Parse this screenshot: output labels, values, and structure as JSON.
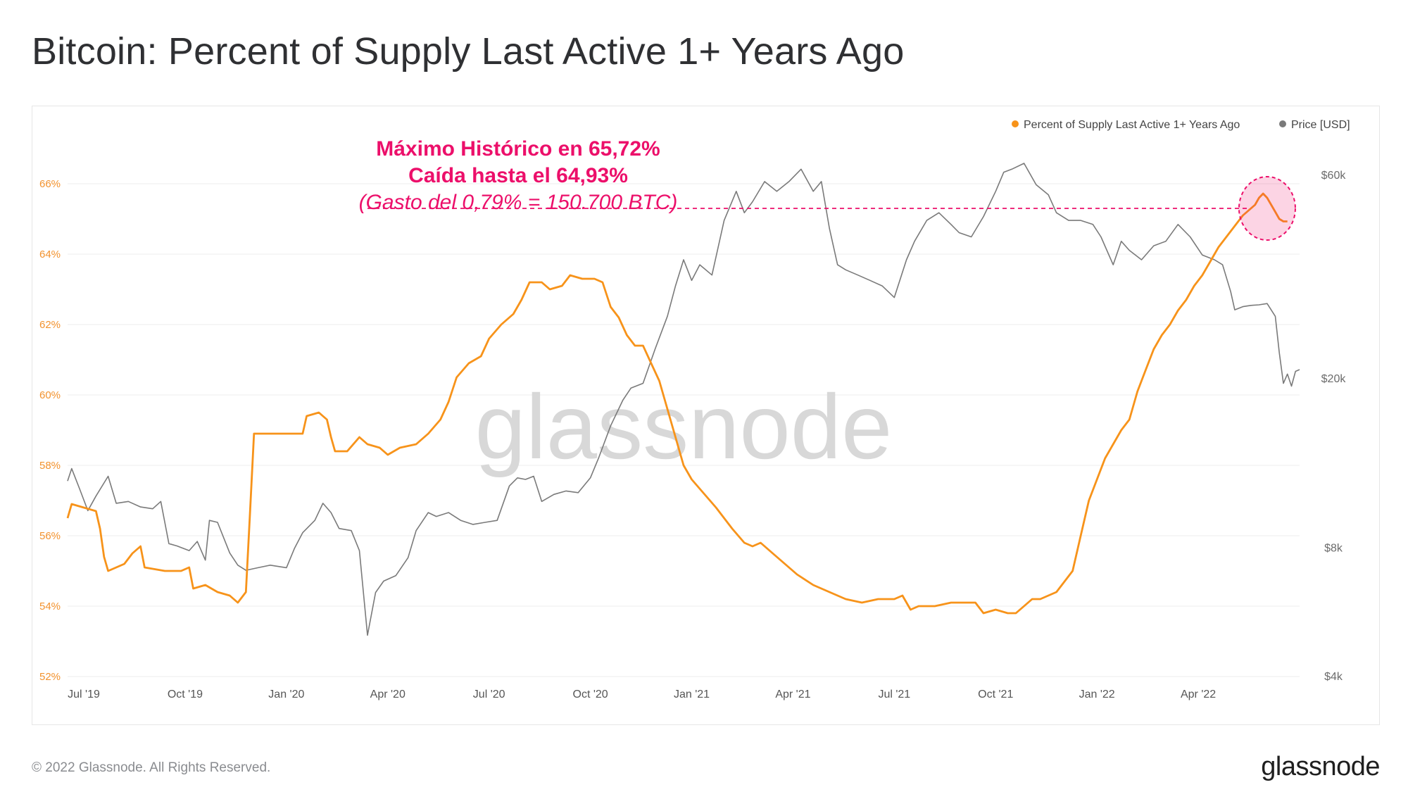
{
  "title": "Bitcoin: Percent of Supply Last Active 1+ Years Ago",
  "footer": {
    "copyright": "© 2022 Glassnode. All Rights Reserved.",
    "logo": "glassnode"
  },
  "chart_data": {
    "type": "line",
    "title": "Bitcoin: Percent of Supply Last Active 1+ Years Ago",
    "watermark": "glassnode",
    "legend": {
      "position": "top-right",
      "entries": [
        {
          "name": "Percent of Supply Last Active 1+ Years Ago",
          "color": "#f7931a"
        },
        {
          "name": "Price [USD]",
          "color": "#7a7a7a"
        }
      ]
    },
    "x_axis": {
      "range": [
        2019.46,
        2022.5
      ],
      "ticks": [
        {
          "label": "Jul '19",
          "t": 2019.5
        },
        {
          "label": "Oct '19",
          "t": 2019.75
        },
        {
          "label": "Jan '20",
          "t": 2020.0
        },
        {
          "label": "Apr '20",
          "t": 2020.25
        },
        {
          "label": "Jul '20",
          "t": 2020.5
        },
        {
          "label": "Oct '20",
          "t": 2020.75
        },
        {
          "label": "Jan '21",
          "t": 2021.0
        },
        {
          "label": "Apr '21",
          "t": 2021.25
        },
        {
          "label": "Jul '21",
          "t": 2021.5
        },
        {
          "label": "Oct '21",
          "t": 2021.75
        },
        {
          "label": "Jan '22",
          "t": 2022.0
        },
        {
          "label": "Apr '22",
          "t": 2022.25
        }
      ]
    },
    "y_left": {
      "unit": "%",
      "range": [
        52,
        67.2
      ],
      "ticks": [
        {
          "label": "52%",
          "v": 52
        },
        {
          "label": "54%",
          "v": 54
        },
        {
          "label": "56%",
          "v": 56
        },
        {
          "label": "58%",
          "v": 58
        },
        {
          "label": "60%",
          "v": 60
        },
        {
          "label": "62%",
          "v": 62
        },
        {
          "label": "64%",
          "v": 64
        },
        {
          "label": "66%",
          "v": 66
        }
      ]
    },
    "y_right": {
      "scale": "log",
      "range": [
        4000,
        72000
      ],
      "ticks": [
        {
          "label": "$4k",
          "v": 4000
        },
        {
          "label": "$8k",
          "v": 8000
        },
        {
          "label": "$20k",
          "v": 20000
        },
        {
          "label": "$60k",
          "v": 60000
        }
      ]
    },
    "series": [
      {
        "name": "Percent of Supply Last Active 1+ Years Ago",
        "axis": "left",
        "color": "#f7931a",
        "points": [
          [
            2019.46,
            56.5
          ],
          [
            2019.47,
            56.9
          ],
          [
            2019.5,
            56.8
          ],
          [
            2019.53,
            56.7
          ],
          [
            2019.54,
            56.2
          ],
          [
            2019.55,
            55.4
          ],
          [
            2019.56,
            55.0
          ],
          [
            2019.6,
            55.2
          ],
          [
            2019.62,
            55.5
          ],
          [
            2019.64,
            55.7
          ],
          [
            2019.65,
            55.1
          ],
          [
            2019.7,
            55.0
          ],
          [
            2019.74,
            55.0
          ],
          [
            2019.76,
            55.1
          ],
          [
            2019.77,
            54.5
          ],
          [
            2019.8,
            54.6
          ],
          [
            2019.83,
            54.4
          ],
          [
            2019.86,
            54.3
          ],
          [
            2019.88,
            54.1
          ],
          [
            2019.9,
            54.4
          ],
          [
            2019.91,
            56.6
          ],
          [
            2019.92,
            58.9
          ],
          [
            2019.95,
            58.9
          ],
          [
            2020.0,
            58.9
          ],
          [
            2020.04,
            58.9
          ],
          [
            2020.05,
            59.4
          ],
          [
            2020.08,
            59.5
          ],
          [
            2020.1,
            59.3
          ],
          [
            2020.11,
            58.8
          ],
          [
            2020.12,
            58.4
          ],
          [
            2020.15,
            58.4
          ],
          [
            2020.18,
            58.8
          ],
          [
            2020.2,
            58.6
          ],
          [
            2020.23,
            58.5
          ],
          [
            2020.25,
            58.3
          ],
          [
            2020.28,
            58.5
          ],
          [
            2020.32,
            58.6
          ],
          [
            2020.35,
            58.9
          ],
          [
            2020.38,
            59.3
          ],
          [
            2020.4,
            59.8
          ],
          [
            2020.42,
            60.5
          ],
          [
            2020.45,
            60.9
          ],
          [
            2020.48,
            61.1
          ],
          [
            2020.5,
            61.6
          ],
          [
            2020.53,
            62.0
          ],
          [
            2020.56,
            62.3
          ],
          [
            2020.58,
            62.7
          ],
          [
            2020.6,
            63.2
          ],
          [
            2020.63,
            63.2
          ],
          [
            2020.65,
            63.0
          ],
          [
            2020.68,
            63.1
          ],
          [
            2020.7,
            63.4
          ],
          [
            2020.73,
            63.3
          ],
          [
            2020.76,
            63.3
          ],
          [
            2020.78,
            63.2
          ],
          [
            2020.8,
            62.5
          ],
          [
            2020.82,
            62.2
          ],
          [
            2020.84,
            61.7
          ],
          [
            2020.86,
            61.4
          ],
          [
            2020.88,
            61.4
          ],
          [
            2020.9,
            60.9
          ],
          [
            2020.92,
            60.4
          ],
          [
            2020.94,
            59.6
          ],
          [
            2020.96,
            58.8
          ],
          [
            2020.98,
            58.0
          ],
          [
            2021.0,
            57.6
          ],
          [
            2021.03,
            57.2
          ],
          [
            2021.06,
            56.8
          ],
          [
            2021.1,
            56.2
          ],
          [
            2021.13,
            55.8
          ],
          [
            2021.15,
            55.7
          ],
          [
            2021.17,
            55.8
          ],
          [
            2021.2,
            55.5
          ],
          [
            2021.23,
            55.2
          ],
          [
            2021.26,
            54.9
          ],
          [
            2021.3,
            54.6
          ],
          [
            2021.34,
            54.4
          ],
          [
            2021.38,
            54.2
          ],
          [
            2021.42,
            54.1
          ],
          [
            2021.46,
            54.2
          ],
          [
            2021.5,
            54.2
          ],
          [
            2021.52,
            54.3
          ],
          [
            2021.54,
            53.9
          ],
          [
            2021.56,
            54.0
          ],
          [
            2021.6,
            54.0
          ],
          [
            2021.64,
            54.1
          ],
          [
            2021.68,
            54.1
          ],
          [
            2021.7,
            54.1
          ],
          [
            2021.72,
            53.8
          ],
          [
            2021.75,
            53.9
          ],
          [
            2021.78,
            53.8
          ],
          [
            2021.8,
            53.8
          ],
          [
            2021.82,
            54.0
          ],
          [
            2021.84,
            54.2
          ],
          [
            2021.86,
            54.2
          ],
          [
            2021.88,
            54.3
          ],
          [
            2021.9,
            54.4
          ],
          [
            2021.92,
            54.7
          ],
          [
            2021.94,
            55.0
          ],
          [
            2021.96,
            56.0
          ],
          [
            2021.98,
            57.0
          ],
          [
            2022.0,
            57.6
          ],
          [
            2022.02,
            58.2
          ],
          [
            2022.04,
            58.6
          ],
          [
            2022.06,
            59.0
          ],
          [
            2022.08,
            59.3
          ],
          [
            2022.1,
            60.1
          ],
          [
            2022.12,
            60.7
          ],
          [
            2022.14,
            61.3
          ],
          [
            2022.16,
            61.7
          ],
          [
            2022.18,
            62.0
          ],
          [
            2022.2,
            62.4
          ],
          [
            2022.22,
            62.7
          ],
          [
            2022.24,
            63.1
          ],
          [
            2022.26,
            63.4
          ],
          [
            2022.28,
            63.8
          ],
          [
            2022.3,
            64.2
          ],
          [
            2022.32,
            64.5
          ],
          [
            2022.34,
            64.8
          ],
          [
            2022.36,
            65.1
          ],
          [
            2022.37,
            65.2
          ],
          [
            2022.38,
            65.3
          ],
          [
            2022.39,
            65.4
          ],
          [
            2022.4,
            65.6
          ],
          [
            2022.41,
            65.72
          ],
          [
            2022.42,
            65.6
          ],
          [
            2022.43,
            65.4
          ],
          [
            2022.44,
            65.2
          ],
          [
            2022.45,
            65.0
          ],
          [
            2022.46,
            64.93
          ],
          [
            2022.47,
            64.93
          ]
        ]
      },
      {
        "name": "Price [USD]",
        "axis": "right",
        "color": "#7a7a7a",
        "points": [
          [
            2019.46,
            11500
          ],
          [
            2019.47,
            12300
          ],
          [
            2019.49,
            11000
          ],
          [
            2019.51,
            9800
          ],
          [
            2019.53,
            10600
          ],
          [
            2019.56,
            11800
          ],
          [
            2019.58,
            10200
          ],
          [
            2019.61,
            10300
          ],
          [
            2019.64,
            10000
          ],
          [
            2019.67,
            9900
          ],
          [
            2019.69,
            10300
          ],
          [
            2019.71,
            8200
          ],
          [
            2019.73,
            8100
          ],
          [
            2019.76,
            7900
          ],
          [
            2019.78,
            8300
          ],
          [
            2019.8,
            7500
          ],
          [
            2019.81,
            9300
          ],
          [
            2019.83,
            9200
          ],
          [
            2019.86,
            7800
          ],
          [
            2019.88,
            7300
          ],
          [
            2019.9,
            7100
          ],
          [
            2019.93,
            7200
          ],
          [
            2019.96,
            7300
          ],
          [
            2020.0,
            7200
          ],
          [
            2020.02,
            8000
          ],
          [
            2020.04,
            8700
          ],
          [
            2020.07,
            9300
          ],
          [
            2020.09,
            10200
          ],
          [
            2020.11,
            9700
          ],
          [
            2020.13,
            8900
          ],
          [
            2020.16,
            8800
          ],
          [
            2020.18,
            7900
          ],
          [
            2020.2,
            5000
          ],
          [
            2020.22,
            6300
          ],
          [
            2020.24,
            6700
          ],
          [
            2020.27,
            6900
          ],
          [
            2020.3,
            7600
          ],
          [
            2020.32,
            8800
          ],
          [
            2020.35,
            9700
          ],
          [
            2020.37,
            9500
          ],
          [
            2020.4,
            9700
          ],
          [
            2020.43,
            9300
          ],
          [
            2020.46,
            9100
          ],
          [
            2020.49,
            9200
          ],
          [
            2020.52,
            9300
          ],
          [
            2020.55,
            11200
          ],
          [
            2020.57,
            11700
          ],
          [
            2020.59,
            11600
          ],
          [
            2020.61,
            11800
          ],
          [
            2020.63,
            10300
          ],
          [
            2020.66,
            10700
          ],
          [
            2020.69,
            10900
          ],
          [
            2020.72,
            10800
          ],
          [
            2020.75,
            11700
          ],
          [
            2020.77,
            13000
          ],
          [
            2020.8,
            15500
          ],
          [
            2020.83,
            17800
          ],
          [
            2020.85,
            19000
          ],
          [
            2020.88,
            19500
          ],
          [
            2020.91,
            23500
          ],
          [
            2020.94,
            28000
          ],
          [
            2020.96,
            33000
          ],
          [
            2020.98,
            38000
          ],
          [
            2021.0,
            34000
          ],
          [
            2021.02,
            37000
          ],
          [
            2021.05,
            35000
          ],
          [
            2021.08,
            47000
          ],
          [
            2021.11,
            55000
          ],
          [
            2021.13,
            49000
          ],
          [
            2021.15,
            52000
          ],
          [
            2021.18,
            58000
          ],
          [
            2021.21,
            55000
          ],
          [
            2021.24,
            58000
          ],
          [
            2021.27,
            62000
          ],
          [
            2021.3,
            55000
          ],
          [
            2021.32,
            58000
          ],
          [
            2021.34,
            45000
          ],
          [
            2021.36,
            37000
          ],
          [
            2021.38,
            36000
          ],
          [
            2021.41,
            35000
          ],
          [
            2021.44,
            34000
          ],
          [
            2021.47,
            33000
          ],
          [
            2021.5,
            31000
          ],
          [
            2021.53,
            38000
          ],
          [
            2021.55,
            42000
          ],
          [
            2021.58,
            47000
          ],
          [
            2021.61,
            49000
          ],
          [
            2021.64,
            46000
          ],
          [
            2021.66,
            44000
          ],
          [
            2021.69,
            43000
          ],
          [
            2021.72,
            48000
          ],
          [
            2021.75,
            55000
          ],
          [
            2021.77,
            61000
          ],
          [
            2021.79,
            62000
          ],
          [
            2021.82,
            64000
          ],
          [
            2021.85,
            57000
          ],
          [
            2021.88,
            54000
          ],
          [
            2021.9,
            49000
          ],
          [
            2021.93,
            47000
          ],
          [
            2021.96,
            47000
          ],
          [
            2021.99,
            46000
          ],
          [
            2022.01,
            43000
          ],
          [
            2022.04,
            37000
          ],
          [
            2022.06,
            42000
          ],
          [
            2022.08,
            40000
          ],
          [
            2022.11,
            38000
          ],
          [
            2022.14,
            41000
          ],
          [
            2022.17,
            42000
          ],
          [
            2022.2,
            46000
          ],
          [
            2022.23,
            43000
          ],
          [
            2022.26,
            39000
          ],
          [
            2022.29,
            38000
          ],
          [
            2022.31,
            37000
          ],
          [
            2022.33,
            32000
          ],
          [
            2022.34,
            29000
          ],
          [
            2022.36,
            29500
          ],
          [
            2022.38,
            29700
          ],
          [
            2022.4,
            29800
          ],
          [
            2022.42,
            30000
          ],
          [
            2022.44,
            28000
          ],
          [
            2022.45,
            23000
          ],
          [
            2022.46,
            19500
          ],
          [
            2022.47,
            20500
          ],
          [
            2022.48,
            19200
          ],
          [
            2022.49,
            20800
          ],
          [
            2022.5,
            21000
          ]
        ]
      }
    ],
    "annotations": {
      "line1": "Máximo Histórico en 65,72%",
      "line2": "Caída hasta el 64,93%",
      "line3": "(Gasto del 0,79% = 150.700 BTC)",
      "reference_level": 65.3,
      "reference_x_range": [
        2020.2,
        2022.37
      ],
      "highlight_center": [
        2022.42,
        65.3
      ],
      "color": "#ec0f6a"
    }
  }
}
